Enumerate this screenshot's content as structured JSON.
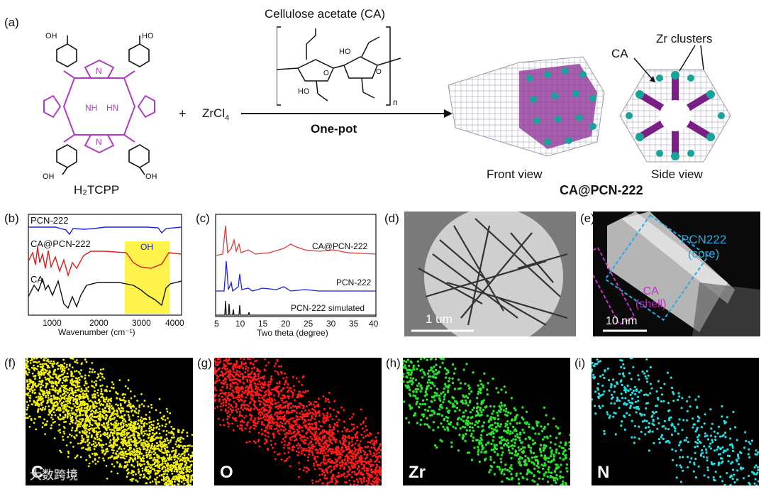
{
  "panel_labels": {
    "a": "(a)",
    "b": "(b)",
    "c": "(c)",
    "d": "(d)",
    "e": "(e)",
    "f": "(f)",
    "g": "(g)",
    "h": "(h)",
    "i": "(i)"
  },
  "scheme": {
    "ligand_name": "H₂TCPP",
    "plus": "+",
    "metal_salt": "ZrCl",
    "metal_salt_sub": "4",
    "polymer_title": "Cellulose acetate (CA)",
    "repeat_n": "n",
    "condition": "One-pot",
    "front_view": "Front view",
    "side_view": "Side view",
    "product": "CA@PCN-222",
    "label_zr": "Zr clusters",
    "label_ca": "CA",
    "atoms": {
      "oh": "OH",
      "ho": "HO",
      "o": "O",
      "nh": "NH",
      "hn": "HN",
      "n": "N"
    }
  },
  "ftir": {
    "legend_pcn": "PCN-222",
    "legend_ca_pcn": "CA@PCN-222",
    "legend_ca": "CA",
    "highlight": "OH",
    "xlabel": "Wavenumber (cm⁻¹)",
    "ticks": [
      "1000",
      "2000",
      "3000",
      "4000"
    ]
  },
  "xrd": {
    "traces": [
      "CA@PCN-222",
      "PCN-222",
      "PCN-222 simulated"
    ],
    "xlabel": "Two theta (degree)",
    "ticks": [
      "5",
      "10",
      "15",
      "20",
      "25",
      "30",
      "35",
      "40"
    ]
  },
  "tem": {
    "scale": "1 um"
  },
  "stem": {
    "core": "PCN222",
    "core_sub": "(core)",
    "shell": "CA",
    "shell_sub": "(shell)",
    "scale": "10 nm"
  },
  "maps": [
    {
      "element": "C",
      "color": "#f2f200"
    },
    {
      "element": "O",
      "color": "#ff1a1a"
    },
    {
      "element": "Zr",
      "color": "#2ce02c"
    },
    {
      "element": "N",
      "color": "#20e0e6"
    }
  ],
  "watermark": "大数跨境"
}
